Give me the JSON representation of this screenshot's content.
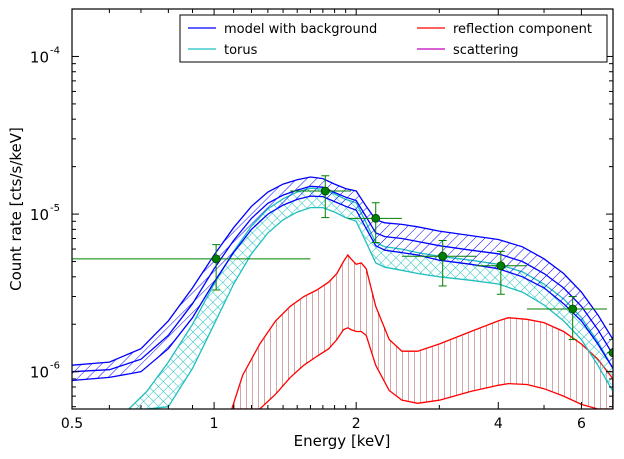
{
  "chart_data": {
    "type": "line",
    "title": "",
    "xlabel": "Energy [keV]",
    "ylabel": "Count rate [cts/s/keV]",
    "x_scale": "log",
    "y_scale": "log",
    "xlim": [
      0.5,
      7.0
    ],
    "ylim": [
      5.8e-07,
      0.0002
    ],
    "x_ticks": [
      {
        "value": 0.5,
        "label": "0.5"
      },
      {
        "value": 1,
        "label": "1"
      },
      {
        "value": 2,
        "label": "2"
      },
      {
        "value": 4,
        "label": "4"
      },
      {
        "value": 6,
        "label": "6"
      }
    ],
    "y_ticks": [
      {
        "value": 1e-06,
        "mantissa": "10",
        "exponent": "-6"
      },
      {
        "value": 1e-05,
        "mantissa": "10",
        "exponent": "-5"
      },
      {
        "value": 0.0001,
        "mantissa": "10",
        "exponent": "-4"
      }
    ],
    "grid": false,
    "legend_position": "top-right",
    "series": [
      {
        "name": "model with background",
        "color": "#0000ff",
        "hatch": "diagonal",
        "x": [
          0.5,
          0.6,
          0.7,
          0.8,
          0.9,
          1.0,
          1.1,
          1.2,
          1.3,
          1.4,
          1.5,
          1.6,
          1.7,
          1.8,
          1.9,
          2.0,
          2.1,
          2.2,
          2.3,
          2.5,
          2.7,
          3.0,
          3.5,
          4.0,
          4.5,
          5.0,
          5.5,
          6.0,
          6.5,
          7.0
        ],
        "upper": [
          1.1e-06,
          1.15e-06,
          1.4e-06,
          2.1e-06,
          3.4e-06,
          5.5e-06,
          8.2e-06,
          1.12e-05,
          1.38e-05,
          1.55e-05,
          1.65e-05,
          1.72e-05,
          1.68e-05,
          1.55e-05,
          1.45e-05,
          1.4e-05,
          1.12e-05,
          9.2e-06,
          8.8e-06,
          8.6e-06,
          8.3e-06,
          7.8e-06,
          7.3e-06,
          6.9e-06,
          6.2e-06,
          5.2e-06,
          4.2e-06,
          3.2e-06,
          2.3e-06,
          1.6e-06
        ],
        "center": [
          1e-06,
          1.03e-06,
          1.2e-06,
          1.7e-06,
          2.7e-06,
          4.5e-06,
          6.8e-06,
          9.4e-06,
          1.17e-05,
          1.32e-05,
          1.42e-05,
          1.5e-05,
          1.48e-05,
          1.37e-05,
          1.28e-05,
          1.22e-05,
          9.6e-06,
          7.6e-06,
          7.2e-06,
          7e-06,
          6.7e-06,
          6.3e-06,
          5.9e-06,
          5.6e-06,
          5e-06,
          4.2e-06,
          3.4e-06,
          2.6e-06,
          1.85e-06,
          1.28e-06
        ],
        "lower": [
          8.8e-07,
          9.2e-07,
          1e-06,
          1.4e-06,
          2.2e-06,
          3.7e-06,
          5.7e-06,
          8e-06,
          1e-05,
          1.14e-05,
          1.24e-05,
          1.3e-05,
          1.29e-05,
          1.2e-05,
          1.12e-05,
          1.06e-05,
          8.1e-06,
          6.3e-06,
          5.9e-06,
          5.7e-06,
          5.5e-06,
          5.1e-06,
          4.8e-06,
          4.5e-06,
          4e-06,
          3.4e-06,
          2.7e-06,
          2.1e-06,
          1.5e-06,
          1.05e-06
        ]
      },
      {
        "name": "torus",
        "color": "#1fbfbf",
        "hatch": "crosshatch",
        "x": [
          0.66,
          0.72,
          0.8,
          0.9,
          1.0,
          1.1,
          1.2,
          1.3,
          1.4,
          1.5,
          1.6,
          1.7,
          1.8,
          1.9,
          2.0,
          2.1,
          2.2,
          2.3,
          2.5,
          2.7,
          3.0,
          3.5,
          4.0,
          4.5,
          5.0,
          5.5,
          6.0,
          6.5,
          7.0
        ],
        "upper": [
          5.8e-07,
          7.5e-07,
          1.15e-06,
          2e-06,
          3.6e-06,
          5.8e-06,
          8.4e-06,
          1.08e-05,
          1.25e-05,
          1.38e-05,
          1.46e-05,
          1.44e-05,
          1.34e-05,
          1.24e-05,
          1.18e-05,
          8.8e-06,
          6.6e-06,
          6.2e-06,
          6e-06,
          5.7e-06,
          5.4e-06,
          5.1e-06,
          4.8e-06,
          4.3e-06,
          3.6e-06,
          2.9e-06,
          2.2e-06,
          1.55e-06,
          1.05e-06
        ],
        "lower": [
          5.8e-07,
          5.8e-07,
          6e-07,
          1.05e-06,
          2e-06,
          3.6e-06,
          5.6e-06,
          7.6e-06,
          9.2e-06,
          1.03e-05,
          1.1e-05,
          1.1e-05,
          1.03e-05,
          9.5e-06,
          9e-06,
          6.6e-06,
          4.9e-06,
          4.6e-06,
          4.4e-06,
          4.2e-06,
          4e-06,
          3.8e-06,
          3.6e-06,
          3.2e-06,
          2.65e-06,
          2.1e-06,
          1.6e-06,
          1.1e-06,
          7.5e-07
        ]
      },
      {
        "name": "reflection component",
        "color": "#ff0000",
        "hatch": "vertical",
        "x": [
          1.09,
          1.15,
          1.25,
          1.35,
          1.45,
          1.55,
          1.65,
          1.75,
          1.82,
          1.88,
          1.92,
          1.95,
          2.0,
          2.05,
          2.1,
          2.2,
          2.35,
          2.5,
          2.7,
          3.0,
          3.5,
          4.0,
          4.2,
          4.6,
          5.0,
          5.5,
          6.0,
          6.5,
          7.0
        ],
        "upper": [
          5.8e-07,
          9.5e-07,
          1.5e-06,
          2.1e-06,
          2.6e-06,
          3e-06,
          3.3e-06,
          3.7e-06,
          4.2e-06,
          5e-06,
          5.5e-06,
          5.2e-06,
          4.8e-06,
          4.9e-06,
          4.5e-06,
          2.6e-06,
          1.6e-06,
          1.35e-06,
          1.35e-06,
          1.5e-06,
          1.8e-06,
          2.1e-06,
          2.2e-06,
          2.15e-06,
          2.05e-06,
          1.8e-06,
          1.5e-06,
          1.2e-06,
          9e-07
        ],
        "lower": [
          5.8e-07,
          5.8e-07,
          5.8e-07,
          7.2e-07,
          9.2e-07,
          1.1e-06,
          1.25e-06,
          1.4e-06,
          1.6e-06,
          1.85e-06,
          1.9e-06,
          1.85e-06,
          1.8e-06,
          1.8e-06,
          1.7e-06,
          1.1e-06,
          7.6e-07,
          6.6e-07,
          6.3e-07,
          6.6e-07,
          7.5e-07,
          8.2e-07,
          8.4e-07,
          8.3e-07,
          7.8e-07,
          7e-07,
          6.2e-07,
          5.8e-07,
          5.8e-07
        ]
      },
      {
        "name": "scattering",
        "color": "#bf00bf",
        "hatch": "none",
        "x": [],
        "y": []
      }
    ],
    "data_points": {
      "color": "#007f00",
      "points": [
        {
          "x": 1.01,
          "y": 5.2e-06,
          "xlo": 0.5,
          "xhi": 1.6,
          "ylo": 3.3e-06,
          "yhi": 6.4e-06
        },
        {
          "x": 1.72,
          "y": 1.4e-05,
          "xlo": 1.45,
          "xhi": 1.95,
          "ylo": 9.5e-06,
          "yhi": 1.75e-05
        },
        {
          "x": 2.2,
          "y": 9.4e-06,
          "xlo": 1.92,
          "xhi": 2.5,
          "ylo": 6.6e-06,
          "yhi": 1.18e-05
        },
        {
          "x": 3.05,
          "y": 5.4e-06,
          "xlo": 2.5,
          "xhi": 3.6,
          "ylo": 3.5e-06,
          "yhi": 6.8e-06
        },
        {
          "x": 4.05,
          "y": 4.7e-06,
          "xlo": 3.6,
          "xhi": 4.6,
          "ylo": 3.1e-06,
          "yhi": 5.8e-06
        },
        {
          "x": 5.75,
          "y": 2.5e-06,
          "xlo": 4.6,
          "xhi": 6.8,
          "ylo": 1.6e-06,
          "yhi": 3e-06
        },
        {
          "x": 7.0,
          "y": 1.32e-06,
          "xlo": 6.8,
          "xhi": 7.0,
          "ylo": 1e-06,
          "yhi": 1.6e-06
        }
      ]
    }
  }
}
